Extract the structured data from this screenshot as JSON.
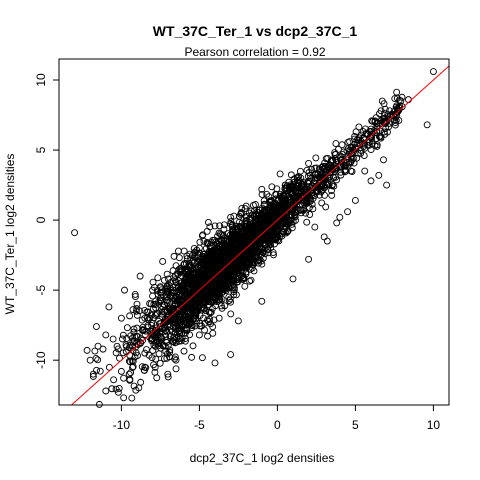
{
  "chart_data": {
    "type": "scatter",
    "title": "WT_37C_Ter_1 vs dcp2_37C_1",
    "subtitle": "Pearson correlation =  0.92",
    "xlabel": "dcp2_37C_1 log2 densities",
    "ylabel": "WT_37C_Ter_1 log2 densities",
    "xlim": [
      -14.0,
      11.0
    ],
    "ylim": [
      -13.2,
      11.5
    ],
    "x_ticks": [
      -10,
      -5,
      0,
      5,
      10
    ],
    "y_ticks": [
      -10,
      -5,
      0,
      5,
      10
    ],
    "grid": false,
    "point_style": "open-circle",
    "colors": {
      "points": "#000000",
      "fit_line": "#ff0000"
    },
    "fit_line": {
      "slope": 1.0,
      "intercept": 0.0
    },
    "points": [
      [
        -13.0,
        -0.9
      ],
      [
        10.0,
        10.6
      ],
      [
        9.6,
        6.8
      ],
      [
        8.4,
        8.6
      ],
      [
        8.0,
        8.1
      ],
      [
        7.6,
        7.6
      ],
      [
        7.2,
        7.4
      ],
      [
        6.8,
        7.0
      ],
      [
        6.4,
        6.7
      ],
      [
        6.0,
        6.5
      ],
      [
        5.8,
        6.1
      ],
      [
        5.4,
        5.6
      ],
      [
        5.0,
        5.2
      ],
      [
        4.6,
        4.8
      ],
      [
        6.5,
        3.2
      ],
      [
        7.0,
        2.5
      ],
      [
        6.0,
        2.8
      ],
      [
        6.8,
        4.3
      ],
      [
        5.6,
        3.5
      ],
      [
        5.0,
        1.4
      ],
      [
        4.5,
        0.6
      ],
      [
        3.2,
        -1.5
      ],
      [
        2.4,
        -0.5
      ],
      [
        3.8,
        -0.2
      ],
      [
        -3.0,
        0.2
      ],
      [
        -4.5,
        -0.8
      ],
      [
        -2.0,
        1.0
      ],
      [
        -1.0,
        2.2
      ],
      [
        0.5,
        2.5
      ],
      [
        1.5,
        3.0
      ],
      [
        -5.0,
        -2.0
      ],
      [
        -6.0,
        -3.2
      ],
      [
        -7.0,
        -4.2
      ],
      [
        -8.0,
        -5.0
      ],
      [
        -9.0,
        -6.0
      ],
      [
        -10.0,
        -7.0
      ],
      [
        -11.0,
        -8.2
      ],
      [
        -11.5,
        -9.0
      ],
      [
        -12.0,
        -10.0
      ],
      [
        -11.8,
        -11.0
      ],
      [
        -11.0,
        -12.2
      ],
      [
        -10.5,
        -11.4
      ],
      [
        -10.0,
        -10.8
      ],
      [
        -9.5,
        -11.0
      ],
      [
        -8.5,
        -10.5
      ],
      [
        -7.0,
        -11.2
      ],
      [
        -6.5,
        -10.0
      ],
      [
        -5.5,
        -9.8
      ],
      [
        -4.0,
        -10.2
      ],
      [
        -3.0,
        -9.6
      ],
      [
        -12.2,
        -9.3
      ],
      [
        -11.6,
        -7.6
      ],
      [
        -10.8,
        -6.2
      ],
      [
        -9.8,
        -5.0
      ],
      [
        -8.8,
        -4.0
      ],
      [
        -6.8,
        -7.8
      ],
      [
        -7.8,
        -8.8
      ],
      [
        -5.0,
        -8.2
      ],
      [
        -2.5,
        -7.2
      ],
      [
        -1.0,
        -5.8
      ],
      [
        1.0,
        -4.2
      ],
      [
        2.0,
        -2.8
      ],
      [
        3.0,
        -1.2
      ],
      [
        4.0,
        0.2
      ],
      [
        -2.0,
        -3.0
      ],
      [
        -3.5,
        -2.2
      ],
      [
        -1.5,
        -1.0
      ],
      [
        0.5,
        -0.5
      ],
      [
        1.5,
        1.4
      ],
      [
        2.5,
        2.0
      ],
      [
        3.5,
        3.6
      ],
      [
        4.2,
        4.0
      ],
      [
        -4.2,
        -5.8
      ],
      [
        -5.8,
        -6.5
      ],
      [
        -3.8,
        -4.5
      ],
      [
        -8.2,
        -7.0
      ],
      [
        -9.2,
        -8.0
      ],
      [
        -10.2,
        -9.2
      ],
      [
        -7.5,
        -5.8
      ],
      [
        -6.2,
        -4.5
      ]
    ]
  }
}
